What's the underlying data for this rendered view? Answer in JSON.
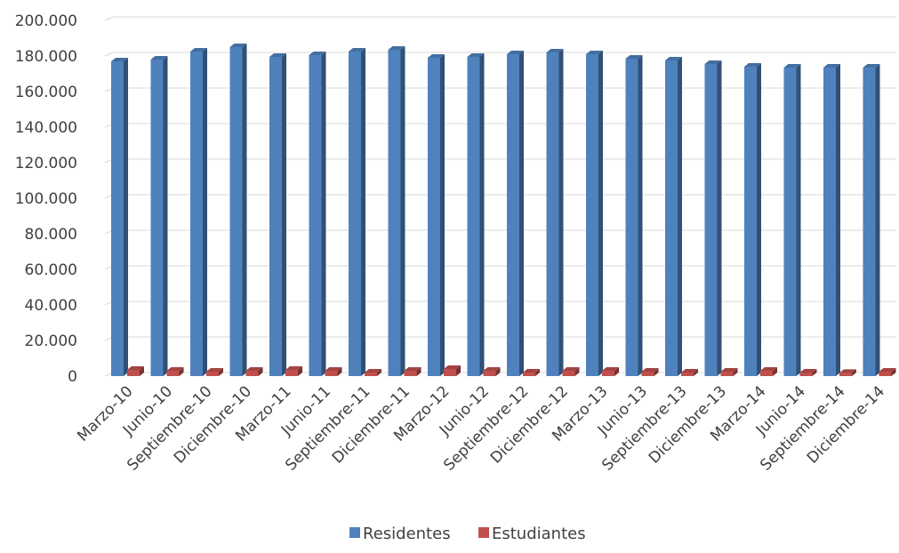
{
  "chart_data": {
    "type": "bar",
    "categories": [
      "Marzo-10",
      "Junio-10",
      "Septiembre-10",
      "Diciembre-10",
      "Marzo-11",
      "Junio-11",
      "Septiembre-11",
      "Diciembre-11",
      "Marzo-12",
      "Junio-12",
      "Septiembre-12",
      "Diciembre-12",
      "Marzo-13",
      "Junio-13",
      "Septiembre-13",
      "Diciembre-13",
      "Marzo-14",
      "Junio-14",
      "Septiembre-14",
      "Diciembre-14"
    ],
    "series": [
      {
        "name": "Residentes",
        "color": "#4F81BD",
        "values": [
          177000,
          178000,
          182500,
          185000,
          179500,
          180500,
          182500,
          183500,
          179000,
          179500,
          181000,
          182000,
          181000,
          178500,
          177500,
          175500,
          174000,
          173500,
          173500,
          173500
        ]
      },
      {
        "name": "Estudiantes",
        "color": "#C0504D",
        "values": [
          3500,
          3000,
          2500,
          3000,
          3500,
          3000,
          2000,
          3000,
          4000,
          3000,
          2000,
          3000,
          3000,
          2500,
          2000,
          2500,
          3000,
          2000,
          1800,
          2500
        ]
      }
    ],
    "yticks": [
      "0",
      "20.000",
      "40.000",
      "60.000",
      "80.000",
      "100.000",
      "120.000",
      "140.000",
      "160.000",
      "180.000",
      "200.000"
    ],
    "ylim": [
      0,
      200000
    ],
    "grid": true,
    "legend": "bottom",
    "title": "",
    "xlabel": "",
    "ylabel": ""
  }
}
